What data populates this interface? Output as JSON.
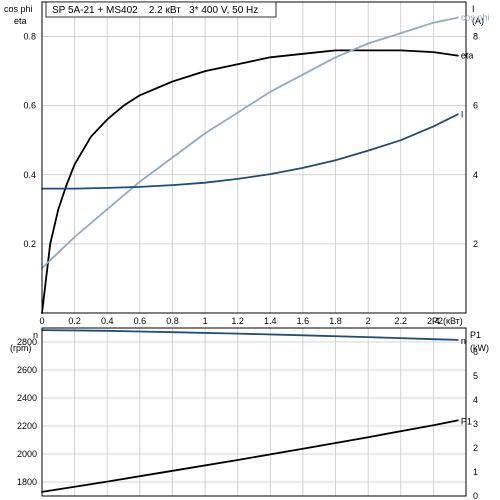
{
  "chart_data": [
    {
      "type": "line",
      "title": "SP 5A-21 + MS402    2.2 кВт   3* 400 V, 50 Hz",
      "xlabel": "P2(кВт)",
      "xlim": [
        0,
        2.6
      ],
      "xticks": [
        0,
        0.2,
        0.4,
        0.6,
        0.8,
        1,
        1.2,
        1.4,
        1.6,
        1.8,
        2,
        2.2,
        2.4
      ],
      "xtick_labels": [
        "0",
        "0.2",
        "0.4",
        "0.6",
        "0.8",
        "1",
        "1.2",
        "1.4",
        "1.6",
        "1.8",
        "2",
        "2.2",
        "2.4"
      ],
      "y_left": {
        "label_lines": [
          "cos phi",
          "eta"
        ],
        "ylim": [
          0,
          0.9
        ],
        "ticks": [
          0.2,
          0.4,
          0.6,
          0.8
        ],
        "tick_labels": [
          "0.2",
          "0.4",
          "0.6",
          "0.8"
        ]
      },
      "y_right": {
        "label_lines": [
          "I",
          "(A)"
        ],
        "ylim": [
          0,
          9
        ],
        "ticks": [
          2,
          4,
          6,
          8
        ],
        "tick_labels": [
          "2",
          "4",
          "6",
          "8"
        ]
      },
      "grid": true,
      "series": [
        {
          "name": "eta",
          "axis": "left",
          "color": "#000000",
          "x": [
            0,
            0.05,
            0.1,
            0.15,
            0.2,
            0.3,
            0.4,
            0.5,
            0.6,
            0.8,
            1.0,
            1.2,
            1.4,
            1.6,
            1.8,
            2.0,
            2.2,
            2.4,
            2.55
          ],
          "y": [
            0,
            0.2,
            0.3,
            0.37,
            0.43,
            0.51,
            0.56,
            0.6,
            0.63,
            0.67,
            0.7,
            0.72,
            0.74,
            0.75,
            0.76,
            0.76,
            0.76,
            0.755,
            0.745
          ]
        },
        {
          "name": "cos phi",
          "axis": "left",
          "color": "#8fa9c6",
          "x": [
            0,
            0.2,
            0.4,
            0.6,
            0.8,
            1.0,
            1.2,
            1.4,
            1.6,
            1.8,
            2.0,
            2.2,
            2.4,
            2.55
          ],
          "y": [
            0.13,
            0.22,
            0.3,
            0.38,
            0.45,
            0.52,
            0.58,
            0.64,
            0.69,
            0.74,
            0.78,
            0.81,
            0.84,
            0.855
          ]
        },
        {
          "name": "I",
          "axis": "right",
          "color": "#1f4e79",
          "x": [
            0,
            0.2,
            0.4,
            0.6,
            0.8,
            1.0,
            1.2,
            1.4,
            1.6,
            1.8,
            2.0,
            2.2,
            2.4,
            2.55
          ],
          "y": [
            3.6,
            3.6,
            3.62,
            3.65,
            3.7,
            3.77,
            3.88,
            4.02,
            4.2,
            4.42,
            4.7,
            5.0,
            5.4,
            5.75
          ]
        }
      ]
    },
    {
      "type": "line",
      "xlim": [
        0,
        2.6
      ],
      "y_left": {
        "label_lines": [
          "n",
          "(rpm)"
        ],
        "ylim": [
          1700,
          2900
        ],
        "ticks": [
          1800,
          2000,
          2200,
          2400,
          2600,
          2800
        ],
        "tick_labels": [
          "1800",
          "2000",
          "2200",
          "2400",
          "2600",
          "2800"
        ]
      },
      "y_right": {
        "label_lines": [
          "P1",
          "(kW)"
        ],
        "ylim": [
          0,
          7
        ],
        "ticks": [
          0,
          1,
          2,
          3,
          4,
          5,
          6
        ],
        "tick_labels": [
          "0",
          "1",
          "2",
          "3",
          "4",
          "5",
          "6"
        ]
      },
      "grid": true,
      "series": [
        {
          "name": "n",
          "axis": "left",
          "color": "#1f4e79",
          "x": [
            0,
            0.4,
            0.8,
            1.2,
            1.6,
            2.0,
            2.4,
            2.55
          ],
          "y": [
            2885,
            2880,
            2870,
            2860,
            2848,
            2835,
            2820,
            2815
          ]
        },
        {
          "name": "P1",
          "axis": "right",
          "color": "#000000",
          "x": [
            0,
            0.4,
            0.8,
            1.2,
            1.6,
            2.0,
            2.4,
            2.55
          ],
          "y": [
            0.17,
            0.6,
            1.05,
            1.5,
            1.97,
            2.45,
            2.95,
            3.15
          ]
        }
      ]
    }
  ]
}
